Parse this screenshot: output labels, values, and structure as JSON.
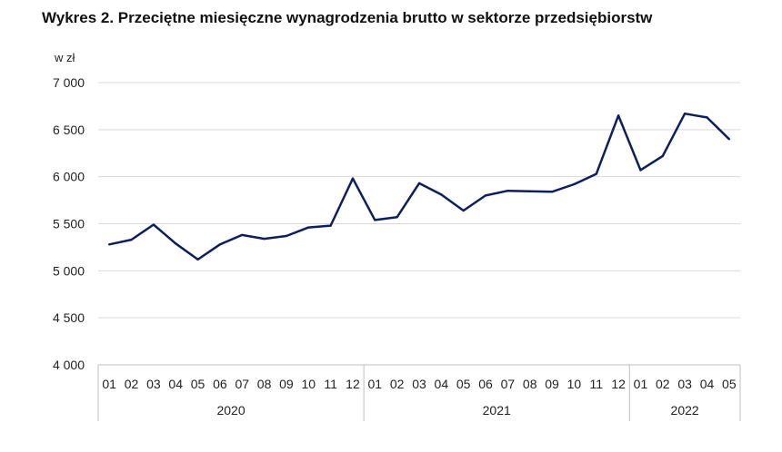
{
  "chart_data": {
    "type": "line",
    "title": "Wykres 2. Przeciętne miesięczne wynagrodzenia brutto w sektorze przedsiębiorstw",
    "ylabel": "w zł",
    "ylim": [
      4000,
      7000
    ],
    "yticks": [
      4000,
      4500,
      5000,
      5500,
      6000,
      6500,
      7000
    ],
    "ytick_labels": [
      "4 000",
      "4 500",
      "5 000",
      "5 500",
      "6 000",
      "6 500",
      "7 000"
    ],
    "grid": true,
    "legend": "none",
    "line_color": "#0d1f5c",
    "years": [
      {
        "label": "2020",
        "count": 12
      },
      {
        "label": "2021",
        "count": 12
      },
      {
        "label": "2022",
        "count": 5
      }
    ],
    "categories": [
      "01",
      "02",
      "03",
      "04",
      "05",
      "06",
      "07",
      "08",
      "09",
      "10",
      "11",
      "12",
      "01",
      "02",
      "03",
      "04",
      "05",
      "06",
      "07",
      "08",
      "09",
      "10",
      "11",
      "12",
      "01",
      "02",
      "03",
      "04",
      "05"
    ],
    "values": [
      5280,
      5330,
      5490,
      5290,
      5120,
      5280,
      5380,
      5340,
      5370,
      5460,
      5480,
      5980,
      5540,
      5570,
      5930,
      5810,
      5640,
      5800,
      5850,
      5845,
      5840,
      5920,
      6030,
      6650,
      6070,
      6220,
      6670,
      6630,
      6400
    ]
  }
}
